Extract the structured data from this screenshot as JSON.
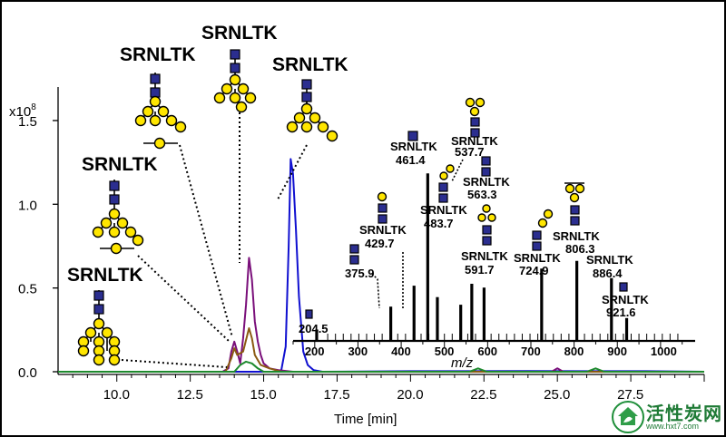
{
  "colors": {
    "blue": "#1010d0",
    "purple": "#7a0f7a",
    "brown": "#8b5a12",
    "green": "#1e8a2e",
    "black": "#000000",
    "hexnac": "#2b2e8f",
    "hexose": "#ffe600"
  },
  "chart_data": [
    {
      "type": "line",
      "title": "",
      "xlabel": "Time [min]",
      "ylabel": "",
      "yscale_label": "x10",
      "yscale_exponent": "8",
      "xlim": [
        8.0,
        30.0
      ],
      "ylim": [
        0.0,
        1.7
      ],
      "xticks": [
        "10.0",
        "12.5",
        "15.0",
        "17.5",
        "20.0",
        "22.5",
        "25.0",
        "27.5"
      ],
      "yticks": [
        "0.0",
        "0.5",
        "1.0",
        "1.5"
      ],
      "grid": false,
      "series": [
        {
          "color": "#1010d0",
          "x": [
            8.0,
            15.4,
            15.6,
            15.75,
            15.85,
            15.92,
            16.0,
            16.1,
            16.2,
            16.35,
            16.5,
            16.7,
            17.0,
            20.0,
            24.0,
            28.0,
            30.0
          ],
          "y": [
            0.0,
            0.0,
            0.01,
            0.15,
            0.75,
            1.27,
            1.18,
            0.85,
            0.45,
            0.12,
            0.04,
            0.01,
            0.0,
            0.003,
            0.004,
            0.003,
            0.0
          ]
        },
        {
          "color": "#7a0f7a",
          "x": [
            8.0,
            13.6,
            13.8,
            13.9,
            14.0,
            14.1,
            14.2,
            14.3,
            14.4,
            14.5,
            14.6,
            14.7,
            14.8,
            14.9,
            15.0,
            15.2,
            15.5,
            16.0,
            24.8,
            25.0,
            25.2,
            29.0,
            30.0
          ],
          "y": [
            0.0,
            0.0,
            0.02,
            0.12,
            0.18,
            0.12,
            0.05,
            0.2,
            0.4,
            0.68,
            0.55,
            0.3,
            0.18,
            0.1,
            0.05,
            0.02,
            0.01,
            0.0,
            0.0,
            0.02,
            0.0,
            0.0,
            0.0
          ]
        },
        {
          "color": "#8b5a12",
          "x": [
            8.0,
            13.7,
            13.9,
            14.0,
            14.1,
            14.3,
            14.5,
            14.6,
            14.7,
            14.9,
            15.2,
            15.6,
            30.0
          ],
          "y": [
            0.0,
            0.0,
            0.08,
            0.14,
            0.1,
            0.12,
            0.26,
            0.2,
            0.1,
            0.04,
            0.02,
            0.0,
            0.0
          ]
        },
        {
          "color": "#1e8a2e",
          "x": [
            8.0,
            14.0,
            14.2,
            14.4,
            14.6,
            14.8,
            15.0,
            22.0,
            22.3,
            22.6,
            26.0,
            26.3,
            26.6,
            30.0
          ],
          "y": [
            0.0,
            0.0,
            0.04,
            0.06,
            0.05,
            0.02,
            0.0,
            0.0,
            0.02,
            0.0,
            0.0,
            0.02,
            0.0,
            0.0
          ]
        }
      ]
    },
    {
      "type": "bar",
      "xlabel": "m/z",
      "xlim": [
        150,
        1080
      ],
      "xticks": [
        "200",
        "300",
        "400",
        "500",
        "600",
        "700",
        "800",
        "900",
        "1000"
      ],
      "peaks": [
        {
          "mz": 204.5,
          "rel": 0.06
        },
        {
          "mz": 375.9,
          "rel": 0.18
        },
        {
          "mz": 429.7,
          "rel": 0.29
        },
        {
          "mz": 461.4,
          "rel": 0.88
        },
        {
          "mz": 483.7,
          "rel": 0.23
        },
        {
          "mz": 537.7,
          "rel": 0.19
        },
        {
          "mz": 563.3,
          "rel": 0.3
        },
        {
          "mz": 591.7,
          "rel": 0.28
        },
        {
          "mz": 724.9,
          "rel": 0.38
        },
        {
          "mz": 806.3,
          "rel": 0.42
        },
        {
          "mz": 886.4,
          "rel": 0.33
        },
        {
          "mz": 921.6,
          "rel": 0.12
        }
      ]
    }
  ],
  "spectrum_labels": [
    {
      "peptide": "",
      "mz": "204.5"
    },
    {
      "peptide": "",
      "mz": "375.9"
    },
    {
      "peptide": "SRNLTK",
      "mz": "429.7"
    },
    {
      "peptide": "SRNLTK",
      "mz": "461.4"
    },
    {
      "peptide": "SRNLTK",
      "mz": "483.7"
    },
    {
      "peptide": "SRNLTK",
      "mz": "537.7"
    },
    {
      "peptide": "SRNLTK",
      "mz": "563.3"
    },
    {
      "peptide": "SRNLTK",
      "mz": "591.7"
    },
    {
      "peptide": "SRNLTK",
      "mz": "724.9"
    },
    {
      "peptide": "SRNLTK",
      "mz": "806.3"
    },
    {
      "peptide": "SRNLTK",
      "mz": "886.4"
    },
    {
      "peptide": "SRNLTK",
      "mz": "921.6"
    }
  ],
  "glycan_labels": [
    "SRNLTK",
    "SRNLTK",
    "SRNLTK",
    "SRNLTK",
    "SRNLTK"
  ],
  "watermark": {
    "title": "活性炭网",
    "url": "www.hxt7.com",
    "icon": "leaf-house-icon"
  }
}
